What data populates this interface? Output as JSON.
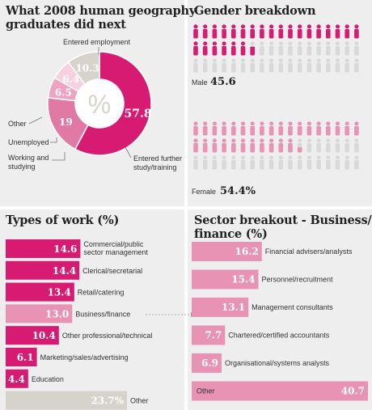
{
  "colors": {
    "magenta": "#d81b72",
    "pink": "#e892b4",
    "light_pink": "#f4c2d6",
    "grey": "#d6d2cc",
    "panel": "#eeeeee",
    "person_grey": "#d9d9d9"
  },
  "donut": {
    "title_line1": "What 2008 human geography",
    "title_line2": "graduates did next",
    "center_symbol": "%",
    "slices": [
      {
        "name": "Entered employment",
        "value": 57.8,
        "label": "57.8",
        "color": "#d81b72"
      },
      {
        "name": "Entered further study/training",
        "value": 19,
        "label": "19",
        "color": "#e07aa5"
      },
      {
        "name": "Working and studying",
        "value": 6.5,
        "label": "6.5",
        "color": "#eea3c2"
      },
      {
        "name": "Unemployed",
        "value": 6.4,
        "label": "6.4",
        "color": "#f6d2e1"
      },
      {
        "name": "Other",
        "value": 10.3,
        "label": "10.3",
        "color": "#d6d2cc"
      }
    ],
    "callouts": {
      "employment": "Entered employment",
      "further_line1": "Entered further",
      "further_line2": "study/training",
      "working_line1": "Working and",
      "working_line2": "studying",
      "unemployed": "Unemployed",
      "other": "Other"
    }
  },
  "gender": {
    "title": "Gender breakdown",
    "male_label": "Male",
    "male_value": "45.6",
    "male_fraction": 0.456,
    "female_label": "Female",
    "female_value": "54.4%",
    "female_fraction": 0.544
  },
  "chart_data": [
    {
      "type": "pie",
      "title": "What 2008 human geography graduates did next",
      "categories": [
        "Entered employment",
        "Entered further study/training",
        "Working and studying",
        "Unemployed",
        "Other"
      ],
      "values": [
        57.8,
        19,
        6.5,
        6.4,
        10.3
      ]
    },
    {
      "type": "bar",
      "title": "Gender breakdown",
      "categories": [
        "Male",
        "Female"
      ],
      "values": [
        45.6,
        54.4
      ]
    },
    {
      "type": "bar",
      "title": "Types of work (%)",
      "categories": [
        "Commercial/public sector management",
        "Clerical/secretarial",
        "Retail/catering",
        "Business/finance",
        "Other professional/technical",
        "Marketing/sales/advertising",
        "Education",
        "Other"
      ],
      "values": [
        14.6,
        14.4,
        13.4,
        13.0,
        10.4,
        6.1,
        4.4,
        23.7
      ],
      "value_labels": [
        "14.6",
        "14.4",
        "13.4",
        "13.0",
        "10.4",
        "6.1",
        "4.4",
        "23.7%"
      ],
      "label_lines": [
        [
          "Commercial/public",
          "sector management"
        ],
        [
          "Clerical/secretarial"
        ],
        [
          "Retail/catering"
        ],
        [
          "Business/finance"
        ],
        [
          "Other professional/technical"
        ],
        [
          "Marketing/sales/advertising"
        ],
        [
          "Education"
        ],
        [
          "Other"
        ]
      ],
      "colors": [
        "#d81b72",
        "#d81b72",
        "#d81b72",
        "#e892b4",
        "#d81b72",
        "#d81b72",
        "#d81b72",
        "#d6d2cc"
      ]
    },
    {
      "type": "bar",
      "title": "Sector breakout - Business/ finance (%)",
      "categories": [
        "Financial advisers/analysts",
        "Personnel/recruitment",
        "Management consultants",
        "Chartered/certified accountants",
        "Organisational/systems analysts",
        "Other"
      ],
      "values": [
        16.2,
        15.4,
        13.1,
        7.7,
        6.9,
        40.7
      ],
      "value_labels": [
        "16.2",
        "15.4",
        "13.1",
        "7.7",
        "6.9",
        "40.7"
      ]
    }
  ],
  "types_title": "Types of work (%)",
  "sector_title_line1": "Sector breakout - Business/",
  "sector_title_line2": "finance (%)"
}
